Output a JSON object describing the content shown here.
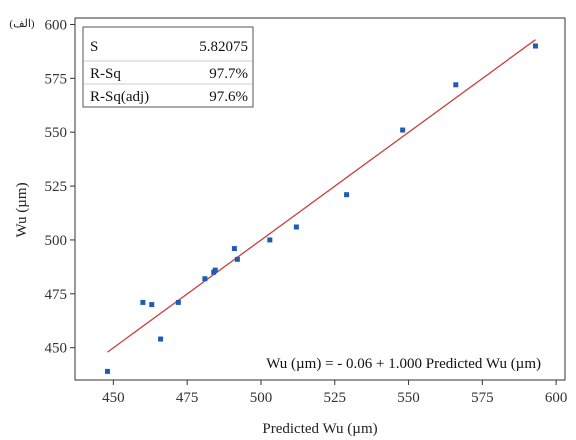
{
  "panel_label": "(الف)",
  "stats": {
    "rows": [
      {
        "label": "S",
        "value": "5.82075"
      },
      {
        "label": "R-Sq",
        "value": "97.7%"
      },
      {
        "label": "R-Sq(adj)",
        "value": "97.6%"
      }
    ]
  },
  "equation": "Wu (µm) = - 0.06 + 1.000 Predicted Wu (µm)",
  "colors": {
    "points": "#1f5bb5",
    "fit_line": "#c8413f",
    "axes": "#333333"
  },
  "chart_data": {
    "type": "scatter",
    "xlabel": "Predicted Wu (µm)",
    "ylabel": "Wu (µm)",
    "xlim": [
      437,
      603
    ],
    "ylim": [
      435,
      603
    ],
    "xticks": [
      450,
      475,
      500,
      525,
      550,
      575,
      600
    ],
    "yticks": [
      450,
      475,
      500,
      525,
      550,
      575,
      600
    ],
    "grid": false,
    "legend": "none",
    "points": [
      {
        "x": 448,
        "y": 439
      },
      {
        "x": 460,
        "y": 471
      },
      {
        "x": 463,
        "y": 470
      },
      {
        "x": 466,
        "y": 454
      },
      {
        "x": 472,
        "y": 471
      },
      {
        "x": 481,
        "y": 482
      },
      {
        "x": 484,
        "y": 485
      },
      {
        "x": 484.5,
        "y": 486
      },
      {
        "x": 491,
        "y": 496
      },
      {
        "x": 492,
        "y": 491
      },
      {
        "x": 503,
        "y": 500
      },
      {
        "x": 512,
        "y": 506
      },
      {
        "x": 529,
        "y": 521
      },
      {
        "x": 548,
        "y": 551
      },
      {
        "x": 566,
        "y": 572
      },
      {
        "x": 593,
        "y": 590
      }
    ],
    "fit_line": {
      "intercept": -0.06,
      "slope": 1.0,
      "x_range": [
        448,
        593
      ]
    }
  }
}
